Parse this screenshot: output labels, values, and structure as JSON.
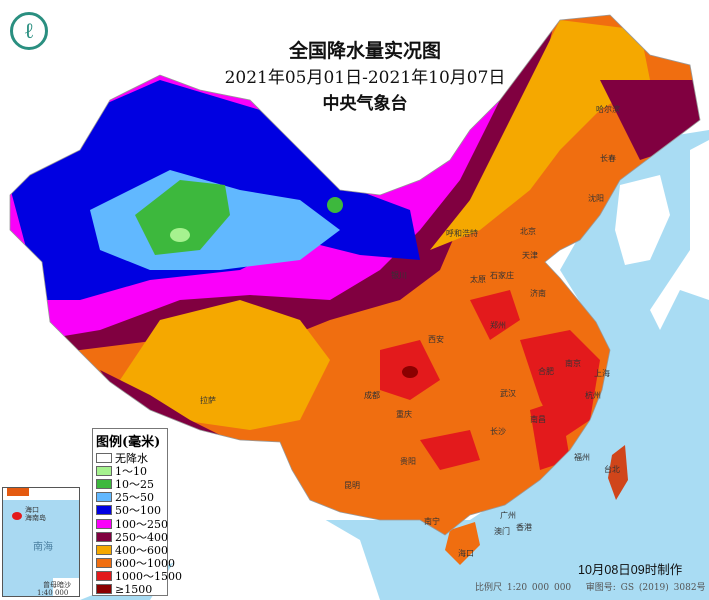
{
  "header": {
    "title": "全国降水量实况图",
    "date_range": "2021年05月01日-2021年10月07日",
    "agency": "中央气象台",
    "logo_icon": "cma-logo"
  },
  "legend": {
    "title": "图例(毫米)",
    "items": [
      {
        "label": "无降水",
        "color": "#ffffff"
      },
      {
        "label": "1～10",
        "color": "#a6f28f"
      },
      {
        "label": "10～25",
        "color": "#3db83d"
      },
      {
        "label": "25～50",
        "color": "#61b8ff"
      },
      {
        "label": "50～100",
        "color": "#0000e1"
      },
      {
        "label": "100～250",
        "color": "#fa00fa"
      },
      {
        "label": "250～400",
        "color": "#800040"
      },
      {
        "label": "400～600",
        "color": "#f5a800"
      },
      {
        "label": "600～1000",
        "color": "#f06e10"
      },
      {
        "label": "1000～1500",
        "color": "#e31a1c"
      },
      {
        "label": "≥1500",
        "color": "#8b0000"
      }
    ]
  },
  "inset": {
    "island": "海南岛",
    "city": "海口",
    "sea": "南海",
    "islands": "曾母暗沙",
    "scale": "1:40 000 000"
  },
  "cities": [
    "哈尔滨",
    "长春",
    "沈阳",
    "呼和浩特",
    "北京",
    "天津",
    "太原",
    "石家庄",
    "济南",
    "银川",
    "西安",
    "郑州",
    "合肥",
    "南京",
    "上海",
    "成都",
    "武汉",
    "重庆",
    "杭州",
    "长沙",
    "南昌",
    "贵阳",
    "福州",
    "台北",
    "昆明",
    "南宁",
    "广州",
    "香港",
    "澳门",
    "拉萨",
    "海口"
  ],
  "footer": {
    "made": "10月08日09时制作",
    "scale": "比例尺 1:20 000 000",
    "map_no": "审图号: GS (2019) 3082号"
  }
}
